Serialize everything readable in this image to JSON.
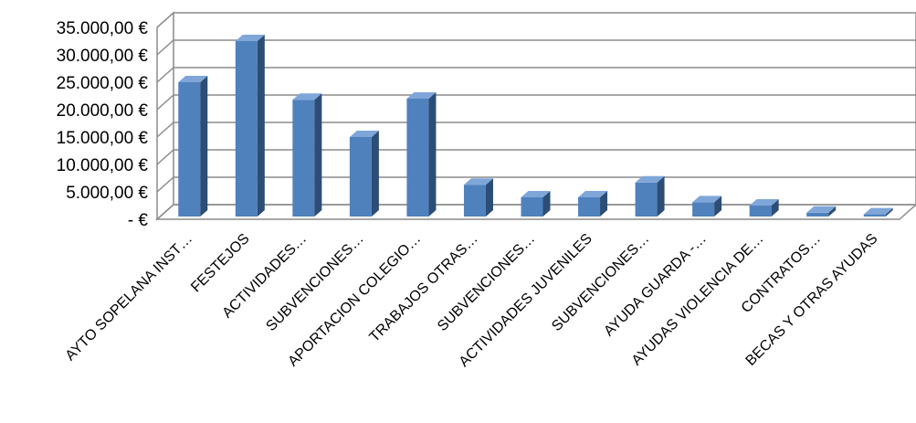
{
  "chart_data": {
    "type": "bar",
    "title": "",
    "xlabel": "",
    "ylabel": "",
    "ylim": [
      0,
      35000
    ],
    "y_ticks": [
      "-  €",
      "5.000,00 €",
      "10.000,00 €",
      "15.000,00 €",
      "20.000,00 €",
      "25.000,00 €",
      "30.000,00 €",
      "35.000,00 €"
    ],
    "y_tick_values": [
      0,
      5000,
      10000,
      15000,
      20000,
      25000,
      30000,
      35000
    ],
    "categories": [
      "AYTO SOPELANA INST…",
      "FESTEJOS",
      "ACTIVIDADES…",
      "SUBVENCIONES…",
      "APORTACION COLEGIO…",
      "TRABAJOS OTRAS…",
      "SUBVENCIONES…",
      "ACTIVIDADES JUVENILES",
      "SUBVENCIONES…",
      "AYUDA GUARDA -…",
      "AYUDAS VIOLENCIA DE…",
      "CONTRATOS…",
      "BECAS Y OTRAS AYUDAS"
    ],
    "values": [
      25000,
      32500,
      21800,
      15000,
      22000,
      6300,
      4000,
      4000,
      6700,
      3100,
      2500,
      1200,
      900
    ],
    "grid": true,
    "legend": "none",
    "bar_color": "#4f81bd",
    "bar_side_color": "#2c4d75",
    "bar_top_color": "#7fa6d9"
  }
}
